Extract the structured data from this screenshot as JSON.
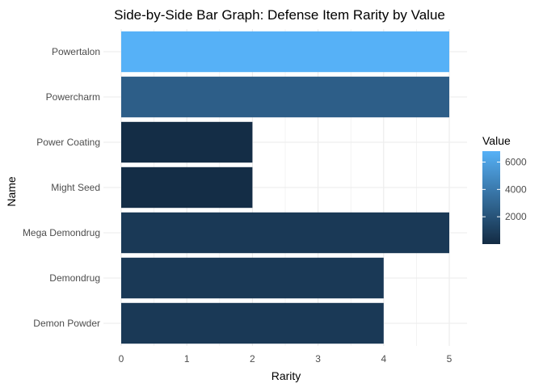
{
  "chart_data": {
    "type": "bar",
    "orientation": "horizontal",
    "title": "Side-by-Side Bar Graph: Defense Item Rarity by Value",
    "xlabel": "Rarity",
    "ylabel": "Name",
    "xlim": [
      0,
      5.25
    ],
    "x_ticks": [
      0,
      1,
      2,
      3,
      4,
      5
    ],
    "grid": true,
    "categories": [
      "Demon Powder",
      "Demondrug",
      "Mega Demondrug",
      "Might Seed",
      "Power Coating",
      "Powercharm",
      "Powertalon"
    ],
    "values": [
      4,
      4,
      5,
      2,
      2,
      5,
      5
    ],
    "color_values": [
      700,
      700,
      700,
      120,
      120,
      2600,
      6800
    ],
    "legend": {
      "title": "Value",
      "position": "right",
      "ticks": [
        2000,
        4000,
        6000
      ],
      "range": [
        0,
        6800
      ],
      "color_low": "#132B43",
      "color_high": "#56B1F7"
    }
  }
}
